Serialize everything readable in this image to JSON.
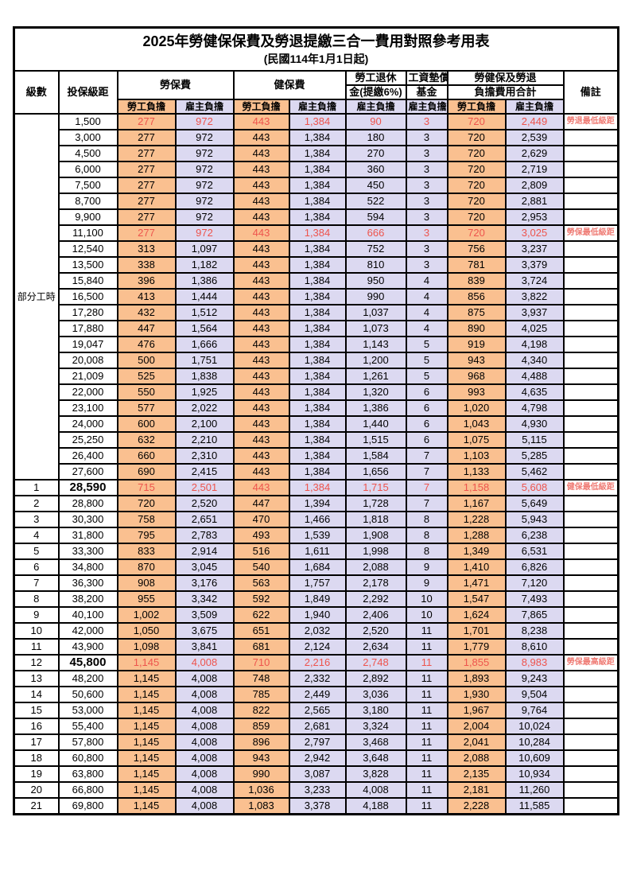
{
  "title": "2025年勞健保保費及勞退提繳三合一費用對照參考用表",
  "subtitle": "(民國114年1月1日起)",
  "colors": {
    "employee_bg": "#fac090",
    "employer_bg": "#dcd9f1",
    "highlight_text": "#ee544d",
    "remark_text": "#ef7b74",
    "border": "#000000"
  },
  "header": {
    "level": "級數",
    "bracket": "投保級距",
    "labor_insurance": "勞保費",
    "health_insurance": "健保費",
    "pension_line1": "勞工退休",
    "pension_line2": "金(提繳6%)",
    "wage_fund_line1": "工資墊償",
    "wage_fund_line2": "基金",
    "total_line1": "勞健保及勞退",
    "total_line2": "負擔費用合計",
    "remark": "備註",
    "employee": "勞工負擔",
    "employer": "雇主負擔"
  },
  "table": {
    "part_time_label": "部分工時",
    "part_time_row_count": 23,
    "rows": [
      {
        "level": "",
        "bracket": "1,500",
        "values": [
          "277",
          "972",
          "443",
          "1,384",
          "90",
          "3",
          "720",
          "2,449"
        ],
        "remark": "勞退最低級距",
        "red": true,
        "emph": false
      },
      {
        "level": "",
        "bracket": "3,000",
        "values": [
          "277",
          "972",
          "443",
          "1,384",
          "180",
          "3",
          "720",
          "2,539"
        ],
        "remark": "",
        "red": false,
        "emph": false
      },
      {
        "level": "",
        "bracket": "4,500",
        "values": [
          "277",
          "972",
          "443",
          "1,384",
          "270",
          "3",
          "720",
          "2,629"
        ],
        "remark": "",
        "red": false,
        "emph": false
      },
      {
        "level": "",
        "bracket": "6,000",
        "values": [
          "277",
          "972",
          "443",
          "1,384",
          "360",
          "3",
          "720",
          "2,719"
        ],
        "remark": "",
        "red": false,
        "emph": false
      },
      {
        "level": "",
        "bracket": "7,500",
        "values": [
          "277",
          "972",
          "443",
          "1,384",
          "450",
          "3",
          "720",
          "2,809"
        ],
        "remark": "",
        "red": false,
        "emph": false
      },
      {
        "level": "",
        "bracket": "8,700",
        "values": [
          "277",
          "972",
          "443",
          "1,384",
          "522",
          "3",
          "720",
          "2,881"
        ],
        "remark": "",
        "red": false,
        "emph": false
      },
      {
        "level": "",
        "bracket": "9,900",
        "values": [
          "277",
          "972",
          "443",
          "1,384",
          "594",
          "3",
          "720",
          "2,953"
        ],
        "remark": "",
        "red": false,
        "emph": false
      },
      {
        "level": "",
        "bracket": "11,100",
        "values": [
          "277",
          "972",
          "443",
          "1,384",
          "666",
          "3",
          "720",
          "3,025"
        ],
        "remark": "勞保最低級距",
        "red": true,
        "emph": false
      },
      {
        "level": "",
        "bracket": "12,540",
        "values": [
          "313",
          "1,097",
          "443",
          "1,384",
          "752",
          "3",
          "756",
          "3,237"
        ],
        "remark": "",
        "red": false,
        "emph": false
      },
      {
        "level": "",
        "bracket": "13,500",
        "values": [
          "338",
          "1,182",
          "443",
          "1,384",
          "810",
          "3",
          "781",
          "3,379"
        ],
        "remark": "",
        "red": false,
        "emph": false
      },
      {
        "level": "",
        "bracket": "15,840",
        "values": [
          "396",
          "1,386",
          "443",
          "1,384",
          "950",
          "4",
          "839",
          "3,724"
        ],
        "remark": "",
        "red": false,
        "emph": false
      },
      {
        "level": "",
        "bracket": "16,500",
        "values": [
          "413",
          "1,444",
          "443",
          "1,384",
          "990",
          "4",
          "856",
          "3,822"
        ],
        "remark": "",
        "red": false,
        "emph": false
      },
      {
        "level": "",
        "bracket": "17,280",
        "values": [
          "432",
          "1,512",
          "443",
          "1,384",
          "1,037",
          "4",
          "875",
          "3,937"
        ],
        "remark": "",
        "red": false,
        "emph": false
      },
      {
        "level": "",
        "bracket": "17,880",
        "values": [
          "447",
          "1,564",
          "443",
          "1,384",
          "1,073",
          "4",
          "890",
          "4,025"
        ],
        "remark": "",
        "red": false,
        "emph": false
      },
      {
        "level": "",
        "bracket": "19,047",
        "values": [
          "476",
          "1,666",
          "443",
          "1,384",
          "1,143",
          "5",
          "919",
          "4,198"
        ],
        "remark": "",
        "red": false,
        "emph": false
      },
      {
        "level": "",
        "bracket": "20,008",
        "values": [
          "500",
          "1,751",
          "443",
          "1,384",
          "1,200",
          "5",
          "943",
          "4,340"
        ],
        "remark": "",
        "red": false,
        "emph": false
      },
      {
        "level": "",
        "bracket": "21,009",
        "values": [
          "525",
          "1,838",
          "443",
          "1,384",
          "1,261",
          "5",
          "968",
          "4,488"
        ],
        "remark": "",
        "red": false,
        "emph": false
      },
      {
        "level": "",
        "bracket": "22,000",
        "values": [
          "550",
          "1,925",
          "443",
          "1,384",
          "1,320",
          "6",
          "993",
          "4,635"
        ],
        "remark": "",
        "red": false,
        "emph": false
      },
      {
        "level": "",
        "bracket": "23,100",
        "values": [
          "577",
          "2,022",
          "443",
          "1,384",
          "1,386",
          "6",
          "1,020",
          "4,798"
        ],
        "remark": "",
        "red": false,
        "emph": false
      },
      {
        "level": "",
        "bracket": "24,000",
        "values": [
          "600",
          "2,100",
          "443",
          "1,384",
          "1,440",
          "6",
          "1,043",
          "4,930"
        ],
        "remark": "",
        "red": false,
        "emph": false
      },
      {
        "level": "",
        "bracket": "25,250",
        "values": [
          "632",
          "2,210",
          "443",
          "1,384",
          "1,515",
          "6",
          "1,075",
          "5,115"
        ],
        "remark": "",
        "red": false,
        "emph": false
      },
      {
        "level": "",
        "bracket": "26,400",
        "values": [
          "660",
          "2,310",
          "443",
          "1,384",
          "1,584",
          "7",
          "1,103",
          "5,285"
        ],
        "remark": "",
        "red": false,
        "emph": false
      },
      {
        "level": "",
        "bracket": "27,600",
        "values": [
          "690",
          "2,415",
          "443",
          "1,384",
          "1,656",
          "7",
          "1,133",
          "5,462"
        ],
        "remark": "",
        "red": false,
        "emph": false
      },
      {
        "level": "1",
        "bracket": "28,590",
        "values": [
          "715",
          "2,501",
          "443",
          "1,384",
          "1,715",
          "7",
          "1,158",
          "5,608"
        ],
        "remark": "健保最低級距",
        "red": true,
        "emph": true
      },
      {
        "level": "2",
        "bracket": "28,800",
        "values": [
          "720",
          "2,520",
          "447",
          "1,394",
          "1,728",
          "7",
          "1,167",
          "5,649"
        ],
        "remark": "",
        "red": false,
        "emph": false
      },
      {
        "level": "3",
        "bracket": "30,300",
        "values": [
          "758",
          "2,651",
          "470",
          "1,466",
          "1,818",
          "8",
          "1,228",
          "5,943"
        ],
        "remark": "",
        "red": false,
        "emph": false
      },
      {
        "level": "4",
        "bracket": "31,800",
        "values": [
          "795",
          "2,783",
          "493",
          "1,539",
          "1,908",
          "8",
          "1,288",
          "6,238"
        ],
        "remark": "",
        "red": false,
        "emph": false
      },
      {
        "level": "5",
        "bracket": "33,300",
        "values": [
          "833",
          "2,914",
          "516",
          "1,611",
          "1,998",
          "8",
          "1,349",
          "6,531"
        ],
        "remark": "",
        "red": false,
        "emph": false
      },
      {
        "level": "6",
        "bracket": "34,800",
        "values": [
          "870",
          "3,045",
          "540",
          "1,684",
          "2,088",
          "9",
          "1,410",
          "6,826"
        ],
        "remark": "",
        "red": false,
        "emph": false
      },
      {
        "level": "7",
        "bracket": "36,300",
        "values": [
          "908",
          "3,176",
          "563",
          "1,757",
          "2,178",
          "9",
          "1,471",
          "7,120"
        ],
        "remark": "",
        "red": false,
        "emph": false
      },
      {
        "level": "8",
        "bracket": "38,200",
        "values": [
          "955",
          "3,342",
          "592",
          "1,849",
          "2,292",
          "10",
          "1,547",
          "7,493"
        ],
        "remark": "",
        "red": false,
        "emph": false
      },
      {
        "level": "9",
        "bracket": "40,100",
        "values": [
          "1,002",
          "3,509",
          "622",
          "1,940",
          "2,406",
          "10",
          "1,624",
          "7,865"
        ],
        "remark": "",
        "red": false,
        "emph": false
      },
      {
        "level": "10",
        "bracket": "42,000",
        "values": [
          "1,050",
          "3,675",
          "651",
          "2,032",
          "2,520",
          "11",
          "1,701",
          "8,238"
        ],
        "remark": "",
        "red": false,
        "emph": false
      },
      {
        "level": "11",
        "bracket": "43,900",
        "values": [
          "1,098",
          "3,841",
          "681",
          "2,124",
          "2,634",
          "11",
          "1,779",
          "8,610"
        ],
        "remark": "",
        "red": false,
        "emph": false
      },
      {
        "level": "12",
        "bracket": "45,800",
        "values": [
          "1,145",
          "4,008",
          "710",
          "2,216",
          "2,748",
          "11",
          "1,855",
          "8,983"
        ],
        "remark": "勞保最高級距",
        "red": true,
        "emph": true
      },
      {
        "level": "13",
        "bracket": "48,200",
        "values": [
          "1,145",
          "4,008",
          "748",
          "2,332",
          "2,892",
          "11",
          "1,893",
          "9,243"
        ],
        "remark": "",
        "red": false,
        "emph": false
      },
      {
        "level": "14",
        "bracket": "50,600",
        "values": [
          "1,145",
          "4,008",
          "785",
          "2,449",
          "3,036",
          "11",
          "1,930",
          "9,504"
        ],
        "remark": "",
        "red": false,
        "emph": false
      },
      {
        "level": "15",
        "bracket": "53,000",
        "values": [
          "1,145",
          "4,008",
          "822",
          "2,565",
          "3,180",
          "11",
          "1,967",
          "9,764"
        ],
        "remark": "",
        "red": false,
        "emph": false
      },
      {
        "level": "16",
        "bracket": "55,400",
        "values": [
          "1,145",
          "4,008",
          "859",
          "2,681",
          "3,324",
          "11",
          "2,004",
          "10,024"
        ],
        "remark": "",
        "red": false,
        "emph": false
      },
      {
        "level": "17",
        "bracket": "57,800",
        "values": [
          "1,145",
          "4,008",
          "896",
          "2,797",
          "3,468",
          "11",
          "2,041",
          "10,284"
        ],
        "remark": "",
        "red": false,
        "emph": false
      },
      {
        "level": "18",
        "bracket": "60,800",
        "values": [
          "1,145",
          "4,008",
          "943",
          "2,942",
          "3,648",
          "11",
          "2,088",
          "10,609"
        ],
        "remark": "",
        "red": false,
        "emph": false
      },
      {
        "level": "19",
        "bracket": "63,800",
        "values": [
          "1,145",
          "4,008",
          "990",
          "3,087",
          "3,828",
          "11",
          "2,135",
          "10,934"
        ],
        "remark": "",
        "red": false,
        "emph": false
      },
      {
        "level": "20",
        "bracket": "66,800",
        "values": [
          "1,145",
          "4,008",
          "1,036",
          "3,233",
          "4,008",
          "11",
          "2,181",
          "11,260"
        ],
        "remark": "",
        "red": false,
        "emph": false
      },
      {
        "level": "21",
        "bracket": "69,800",
        "values": [
          "1,145",
          "4,008",
          "1,083",
          "3,378",
          "4,188",
          "11",
          "2,228",
          "11,585"
        ],
        "remark": "",
        "red": false,
        "emph": false
      }
    ]
  }
}
